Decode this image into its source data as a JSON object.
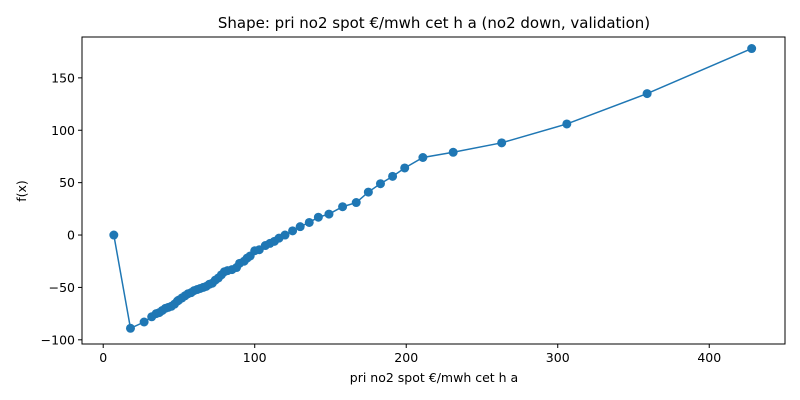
{
  "chart_data": {
    "type": "line",
    "title": "Shape: pri no2 spot €/mwh cet h a (no2 down, validation)",
    "xlabel": "pri no2 spot €/mwh cet h a",
    "ylabel": "f(x)",
    "xlim": [
      -14,
      450
    ],
    "ylim": [
      -104,
      189
    ],
    "xticks": [
      0,
      100,
      200,
      300,
      400
    ],
    "yticks": [
      -100,
      -50,
      0,
      50,
      100,
      150
    ],
    "grid": false,
    "color": "#1f77b4",
    "marker": "circle",
    "series": [
      {
        "x": [
          7,
          18,
          27,
          32,
          35,
          37,
          39,
          41,
          43,
          45,
          47,
          49,
          50,
          52,
          54,
          56,
          58,
          60,
          62,
          64,
          66,
          68,
          70,
          72,
          74,
          76,
          78,
          80,
          82,
          85,
          88,
          90,
          93,
          95,
          97,
          100,
          103,
          107,
          110,
          113,
          116,
          120,
          125,
          130,
          136,
          142,
          149,
          158,
          167,
          175,
          183,
          191,
          199,
          211,
          231,
          263,
          306,
          359,
          428
        ],
        "y": [
          0,
          -89,
          -83,
          -78,
          -75,
          -74,
          -72,
          -70,
          -69,
          -68,
          -66,
          -63,
          -62,
          -60,
          -58,
          -56,
          -55,
          -53,
          -52,
          -51,
          -50,
          -49,
          -47,
          -46,
          -43,
          -41,
          -38,
          -35,
          -34,
          -33,
          -31,
          -27,
          -25,
          -22,
          -20,
          -15,
          -14,
          -10,
          -8,
          -6,
          -3,
          0,
          4,
          8,
          12,
          17,
          20,
          27,
          31,
          41,
          49,
          56,
          64,
          74,
          79,
          88,
          106,
          135,
          178
        ]
      }
    ]
  }
}
